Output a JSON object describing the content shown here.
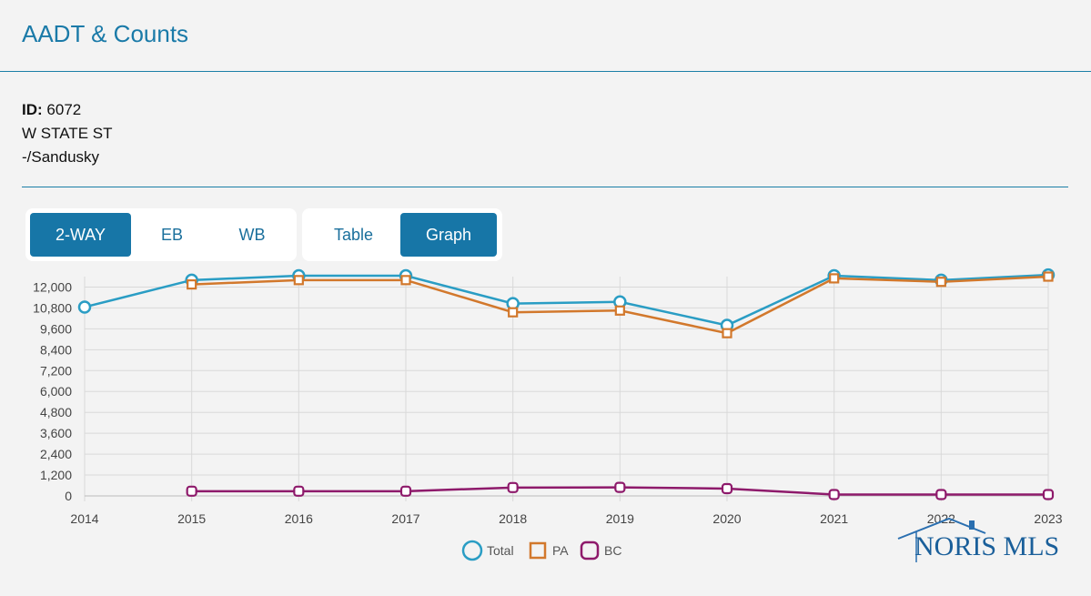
{
  "header": {
    "title": "AADT & Counts"
  },
  "info": {
    "id_label": "ID:",
    "id_value": "6072",
    "street": "W STATE ST",
    "segment": "-/Sandusky"
  },
  "direction_tabs": [
    {
      "label": "2-WAY",
      "active": true
    },
    {
      "label": "EB",
      "active": false
    },
    {
      "label": "WB",
      "active": false
    }
  ],
  "view_tabs": [
    {
      "label": "Table",
      "active": false
    },
    {
      "label": "Graph",
      "active": true
    }
  ],
  "logo": {
    "text": "NORIS MLS"
  },
  "colors": {
    "accent": "#1a7aa8",
    "total": "#2a9dc4",
    "pa": "#d2782c",
    "bc": "#8e1a6b",
    "grid": "#d9d9d9"
  },
  "chart_data": {
    "type": "line",
    "x": [
      "2014",
      "2015",
      "2016",
      "2017",
      "2018",
      "2019",
      "2020",
      "2021",
      "2022",
      "2023"
    ],
    "yticks": [
      0,
      1200,
      2400,
      3600,
      4800,
      6000,
      7200,
      8400,
      9600,
      10800,
      12000
    ],
    "ytick_labels": [
      "0",
      "1,200",
      "2,400",
      "3,600",
      "4,800",
      "6,000",
      "7,200",
      "8,400",
      "9,600",
      "10,800",
      "12,000"
    ],
    "ylim": [
      0,
      12600
    ],
    "grid": true,
    "legend": "bottom",
    "series": [
      {
        "name": "Total",
        "marker": "circle",
        "values": [
          10850,
          12400,
          12650,
          12650,
          11050,
          11150,
          9800,
          12650,
          12400,
          12700
        ]
      },
      {
        "name": "PA",
        "marker": "square",
        "values": [
          null,
          12150,
          12400,
          12400,
          10550,
          10650,
          9350,
          12500,
          12300,
          12600
        ]
      },
      {
        "name": "BC",
        "marker": "square",
        "values": [
          null,
          270,
          270,
          270,
          480,
          490,
          420,
          80,
          80,
          80
        ]
      }
    ]
  }
}
